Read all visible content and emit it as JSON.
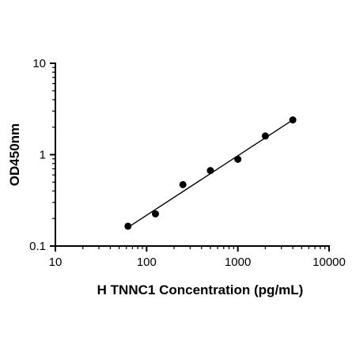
{
  "chart_data": {
    "type": "scatter",
    "x_scale": "log",
    "y_scale": "log",
    "xlabel": "H TNNC1 Concentration (pg/mL)",
    "ylabel": "OD450nm",
    "xlim": [
      10,
      10000
    ],
    "ylim": [
      0.1,
      10
    ],
    "x_ticks": [
      10,
      100,
      1000,
      10000
    ],
    "y_ticks": [
      0.1,
      1,
      10
    ],
    "x_tick_labels": [
      "10",
      "100",
      "1000",
      "10000"
    ],
    "y_tick_labels": [
      "0.1",
      "1",
      "10"
    ],
    "points": [
      {
        "x": 62.5,
        "y": 0.165
      },
      {
        "x": 125,
        "y": 0.225
      },
      {
        "x": 250,
        "y": 0.47
      },
      {
        "x": 500,
        "y": 0.67
      },
      {
        "x": 1000,
        "y": 0.89
      },
      {
        "x": 2000,
        "y": 1.6
      },
      {
        "x": 4000,
        "y": 2.4
      }
    ],
    "fit_line": {
      "x_start": 62.5,
      "y_start": 0.16,
      "x_end": 4000,
      "y_end": 2.4
    },
    "grid": false,
    "legend": "none",
    "colors": {
      "points": "#000000",
      "line": "#000000",
      "axes": "#000000"
    }
  }
}
